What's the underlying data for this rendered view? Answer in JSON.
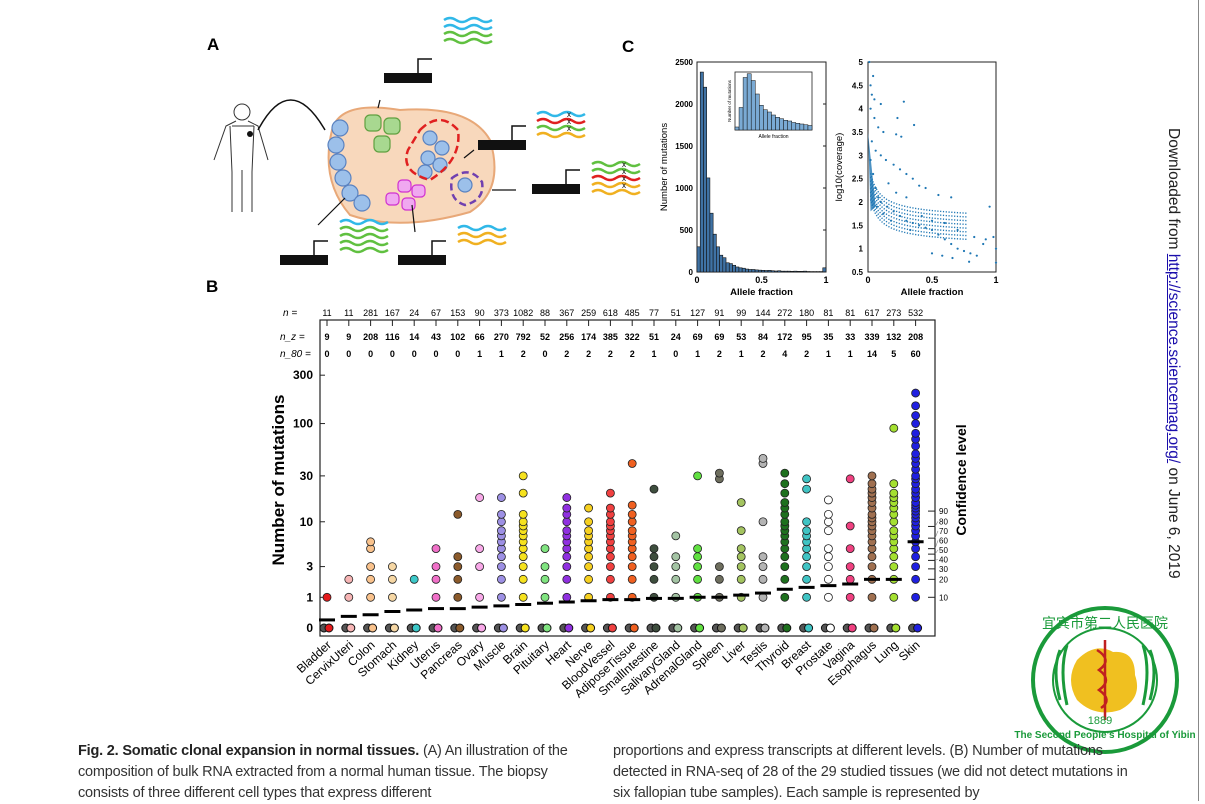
{
  "panels": {
    "a": "A",
    "b": "B",
    "c": "C"
  },
  "panel_b": {
    "n_labels": [
      "n =",
      "n_z =",
      "n_80 ="
    ],
    "ylabel": "Number of mutations",
    "y2label": "Confidence level",
    "yticks": [
      0,
      1,
      3,
      10,
      30,
      100,
      300
    ],
    "confidence_ticks": [
      10,
      20,
      30,
      40,
      50,
      60,
      70,
      80,
      90
    ],
    "tissues": [
      {
        "name": "Bladder",
        "n": 11,
        "nz": 9,
        "n80": 0,
        "color": "#e41a1c",
        "median": 0.2,
        "values": [
          0,
          0,
          1
        ]
      },
      {
        "name": "CervixUteri",
        "n": 11,
        "nz": 9,
        "n80": 0,
        "color": "#f7b5b5",
        "median": 0.3,
        "values": [
          0,
          0,
          1,
          2
        ]
      },
      {
        "name": "Colon",
        "n": 281,
        "nz": 208,
        "n80": 0,
        "color": "#f9c28c",
        "median": 0.35,
        "values": [
          0,
          1,
          2,
          3,
          5,
          6
        ]
      },
      {
        "name": "Stomach",
        "n": 167,
        "nz": 116,
        "n80": 0,
        "color": "#f6d7a4",
        "median": 0.45,
        "values": [
          0,
          1,
          2,
          3
        ]
      },
      {
        "name": "Kidney",
        "n": 24,
        "nz": 14,
        "n80": 0,
        "color": "#3cc8c8",
        "median": 0.5,
        "values": [
          0,
          2
        ]
      },
      {
        "name": "Uterus",
        "n": 67,
        "nz": 43,
        "n80": 0,
        "color": "#f070c8",
        "median": 0.55,
        "values": [
          0,
          1,
          2,
          3,
          5
        ]
      },
      {
        "name": "Pancreas",
        "n": 153,
        "nz": 102,
        "n80": 0,
        "color": "#8b5a2b",
        "median": 0.55,
        "values": [
          0,
          1,
          2,
          3,
          4,
          12
        ]
      },
      {
        "name": "Ovary",
        "n": 90,
        "nz": 66,
        "n80": 1,
        "color": "#f8a8e8",
        "median": 0.6,
        "values": [
          0,
          1,
          3,
          5,
          18
        ]
      },
      {
        "name": "Muscle",
        "n": 373,
        "nz": 270,
        "n80": 1,
        "color": "#9d90e4",
        "median": 0.65,
        "values": [
          0,
          1,
          2,
          3,
          4,
          5,
          6,
          7,
          8,
          10,
          12,
          18
        ]
      },
      {
        "name": "Brain",
        "n": 1082,
        "nz": 792,
        "n80": 2,
        "color": "#f6e21e",
        "median": 0.7,
        "values": [
          0,
          1,
          2,
          3,
          4,
          5,
          6,
          7,
          8,
          9,
          10,
          12,
          20,
          30
        ]
      },
      {
        "name": "Pituitary",
        "n": 88,
        "nz": 52,
        "n80": 0,
        "color": "#80e480",
        "median": 0.75,
        "values": [
          0,
          1,
          2,
          3,
          5
        ]
      },
      {
        "name": "Heart",
        "n": 367,
        "nz": 256,
        "n80": 2,
        "color": "#9030e0",
        "median": 0.8,
        "values": [
          0,
          1,
          2,
          3,
          4,
          5,
          6,
          7,
          8,
          10,
          12,
          14,
          18
        ]
      },
      {
        "name": "Nerve",
        "n": 259,
        "nz": 174,
        "n80": 2,
        "color": "#f6d020",
        "median": 0.85,
        "values": [
          0,
          1,
          2,
          3,
          4,
          5,
          6,
          7,
          8,
          10,
          14
        ]
      },
      {
        "name": "BloodVessel",
        "n": 618,
        "nz": 385,
        "n80": 2,
        "color": "#f04040",
        "median": 0.9,
        "values": [
          0,
          1,
          2,
          3,
          4,
          5,
          6,
          7,
          8,
          9,
          10,
          12,
          14,
          20
        ]
      },
      {
        "name": "AdiposeTissue",
        "n": 485,
        "nz": 322,
        "n80": 2,
        "color": "#f06020",
        "median": 0.9,
        "values": [
          0,
          1,
          2,
          3,
          4,
          5,
          6,
          7,
          8,
          10,
          12,
          15,
          40
        ]
      },
      {
        "name": "SmallIntestine",
        "n": 77,
        "nz": 51,
        "n80": 1,
        "color": "#3e4e3e",
        "median": 0.95,
        "values": [
          0,
          1,
          2,
          3,
          4,
          5,
          22
        ]
      },
      {
        "name": "SalivaryGland",
        "n": 51,
        "nz": 24,
        "n80": 0,
        "color": "#a4c4a4",
        "median": 0.95,
        "values": [
          0,
          1,
          2,
          3,
          4,
          7
        ]
      },
      {
        "name": "AdrenalGland",
        "n": 127,
        "nz": 69,
        "n80": 1,
        "color": "#60e040",
        "median": 1.0,
        "values": [
          0,
          1,
          2,
          3,
          4,
          5,
          30
        ]
      },
      {
        "name": "Spleen",
        "n": 91,
        "nz": 69,
        "n80": 2,
        "color": "#6e6e5e",
        "median": 1.0,
        "values": [
          0,
          1,
          2,
          3,
          28,
          32
        ]
      },
      {
        "name": "Liver",
        "n": 99,
        "nz": 53,
        "n80": 1,
        "color": "#a4c460",
        "median": 1.1,
        "values": [
          0,
          1,
          2,
          3,
          4,
          5,
          8,
          16
        ]
      },
      {
        "name": "Testis",
        "n": 144,
        "nz": 84,
        "n80": 2,
        "color": "#b4b4b4",
        "median": 1.2,
        "values": [
          0,
          1,
          2,
          3,
          4,
          10,
          40,
          45
        ]
      },
      {
        "name": "Thyroid",
        "n": 272,
        "nz": 172,
        "n80": 4,
        "color": "#1e701e",
        "median": 1.4,
        "values": [
          0,
          1,
          2,
          3,
          4,
          5,
          6,
          7,
          8,
          9,
          10,
          12,
          14,
          16,
          20,
          25,
          32
        ]
      },
      {
        "name": "Breast",
        "n": 180,
        "nz": 95,
        "n80": 2,
        "color": "#40c4c4",
        "median": 1.5,
        "values": [
          0,
          1,
          2,
          3,
          4,
          5,
          6,
          7,
          8,
          10,
          22,
          28
        ]
      },
      {
        "name": "Prostate",
        "n": 81,
        "nz": 35,
        "n80": 1,
        "color": "#ffffff",
        "median": 1.6,
        "values": [
          0,
          1,
          2,
          3,
          4,
          5,
          8,
          10,
          12,
          17
        ]
      },
      {
        "name": "Vagina",
        "n": 81,
        "nz": 33,
        "n80": 1,
        "color": "#f04080",
        "median": 1.7,
        "values": [
          0,
          1,
          2,
          3,
          5,
          9,
          28
        ]
      },
      {
        "name": "Esophagus",
        "n": 617,
        "nz": 339,
        "n80": 14,
        "color": "#a07050",
        "median": 2.0,
        "values": [
          0,
          1,
          2,
          3,
          4,
          5,
          6,
          7,
          8,
          9,
          10,
          11,
          12,
          14,
          16,
          18,
          20,
          22,
          25,
          30
        ]
      },
      {
        "name": "Lung",
        "n": 273,
        "nz": 132,
        "n80": 5,
        "color": "#a4e030",
        "median": 2.0,
        "values": [
          0,
          1,
          2,
          3,
          4,
          5,
          6,
          7,
          8,
          10,
          12,
          14,
          16,
          18,
          20,
          25,
          90
        ]
      },
      {
        "name": "Skin",
        "n": 532,
        "nz": 208,
        "n80": 60,
        "color": "#2020e0",
        "median": 6.0,
        "values": [
          0,
          1,
          2,
          3,
          4,
          5,
          6,
          7,
          8,
          9,
          10,
          11,
          12,
          13,
          14,
          15,
          16,
          18,
          20,
          22,
          25,
          28,
          30,
          35,
          40,
          45,
          50,
          60,
          70,
          80,
          100,
          120,
          150,
          200
        ]
      }
    ]
  },
  "chart_data": [
    {
      "type": "bar",
      "panel": "C-left",
      "xlabel": "Allele fraction",
      "ylabel": "Number of mutations",
      "xlim": [
        0,
        1
      ],
      "ylim": [
        0,
        2500
      ],
      "xticks": [
        0,
        0.5,
        1
      ],
      "yticks": [
        0,
        500,
        1000,
        1500,
        2000,
        2500
      ],
      "bin_width": 0.025,
      "values": [
        300,
        2380,
        2200,
        1120,
        700,
        450,
        300,
        200,
        170,
        110,
        100,
        80,
        60,
        50,
        45,
        35,
        30,
        30,
        25,
        22,
        20,
        18,
        20,
        15,
        12,
        15,
        10,
        10,
        10,
        8,
        10,
        8,
        8,
        10,
        6,
        5,
        5,
        5,
        5,
        50
      ],
      "inset": {
        "xlabel": "Allele fraction",
        "ylabel": "Number of mutations"
      },
      "color": "#3a6e9e"
    },
    {
      "type": "scatter",
      "panel": "C-right",
      "xlabel": "Allele fraction",
      "ylabel": "log10(coverage)",
      "xlim": [
        0,
        1
      ],
      "ylim": [
        0.5,
        5
      ],
      "xticks": [
        0,
        0.5,
        1
      ],
      "yticks": [
        0.5,
        1,
        1.5,
        2,
        2.5,
        3,
        3.5,
        4,
        4.5,
        5
      ],
      "color": "#1f77b4",
      "points": [
        [
          0.01,
          5
        ],
        [
          0.04,
          4.7
        ],
        [
          0.02,
          4.5
        ],
        [
          0.03,
          4.3
        ],
        [
          0.05,
          4.2
        ],
        [
          0.1,
          4.1
        ],
        [
          0.28,
          4.15
        ],
        [
          0.23,
          3.8
        ],
        [
          0.36,
          3.65
        ],
        [
          0.02,
          4.0
        ],
        [
          0.05,
          3.8
        ],
        [
          0.08,
          3.6
        ],
        [
          0.12,
          3.5
        ],
        [
          0.22,
          3.45
        ],
        [
          0.26,
          3.4
        ],
        [
          0.03,
          3.3
        ],
        [
          0.06,
          3.1
        ],
        [
          0.1,
          3.0
        ],
        [
          0.14,
          2.9
        ],
        [
          0.2,
          2.8
        ],
        [
          0.25,
          2.7
        ],
        [
          0.3,
          2.6
        ],
        [
          0.35,
          2.5
        ],
        [
          0.4,
          2.35
        ],
        [
          0.45,
          2.3
        ],
        [
          0.55,
          2.15
        ],
        [
          0.65,
          2.1
        ],
        [
          0.95,
          1.9
        ],
        [
          0.02,
          2.9
        ],
        [
          0.04,
          2.6
        ],
        [
          0.06,
          2.3
        ],
        [
          0.08,
          2.1
        ],
        [
          0.1,
          2.0
        ],
        [
          0.15,
          1.9
        ],
        [
          0.2,
          1.8
        ],
        [
          0.25,
          1.7
        ],
        [
          0.3,
          1.6
        ],
        [
          0.35,
          1.55
        ],
        [
          0.4,
          1.5
        ],
        [
          0.45,
          1.45
        ],
        [
          0.5,
          1.4
        ],
        [
          0.55,
          1.3
        ],
        [
          0.6,
          1.2
        ],
        [
          0.65,
          1.1
        ],
        [
          0.7,
          1.0
        ],
        [
          0.75,
          0.95
        ],
        [
          0.8,
          0.9
        ],
        [
          0.85,
          0.85
        ],
        [
          0.9,
          1.1
        ],
        [
          0.92,
          1.2
        ],
        [
          1.0,
          1.0
        ],
        [
          1.0,
          0.7
        ],
        [
          0.5,
          0.9
        ],
        [
          0.58,
          0.85
        ],
        [
          0.66,
          0.8
        ],
        [
          0.79,
          0.72
        ],
        [
          0.33,
          1.4
        ],
        [
          0.18,
          1.6
        ],
        [
          0.12,
          1.75
        ],
        [
          0.07,
          1.9
        ],
        [
          0.5,
          1.6
        ],
        [
          0.6,
          1.55
        ],
        [
          0.42,
          1.7
        ],
        [
          0.3,
          2.1
        ],
        [
          0.22,
          2.2
        ],
        [
          0.16,
          2.4
        ],
        [
          0.7,
          1.4
        ],
        [
          0.83,
          1.25
        ],
        [
          0.98,
          1.25
        ]
      ]
    }
  ],
  "caption": {
    "title": "Fig. 2. Somatic clonal expansion in normal tissues.",
    "col1": " (A) An illustration of the composition of bulk RNA extracted from a normal human tissue. The biopsy consists of three different cell types that express different",
    "col2": "proportions and express transcripts at different levels. (B) Number of mutations detected in RNA-seq of 28 of the 29 studied tissues (we did not detect mutations in six fallopian tube samples). Each sample is represented by"
  },
  "sidebar_text": {
    "prefix": "Downloaded from ",
    "link": "http://science.sciencemag.org/",
    "suffix": " on June 6, 2019"
  },
  "watermark": {
    "top_text": "宜宾市第二人民医院",
    "bottom_text": "The Second People's Hospital of Yibin",
    "year": "1889",
    "color": "#1a9a3a"
  }
}
